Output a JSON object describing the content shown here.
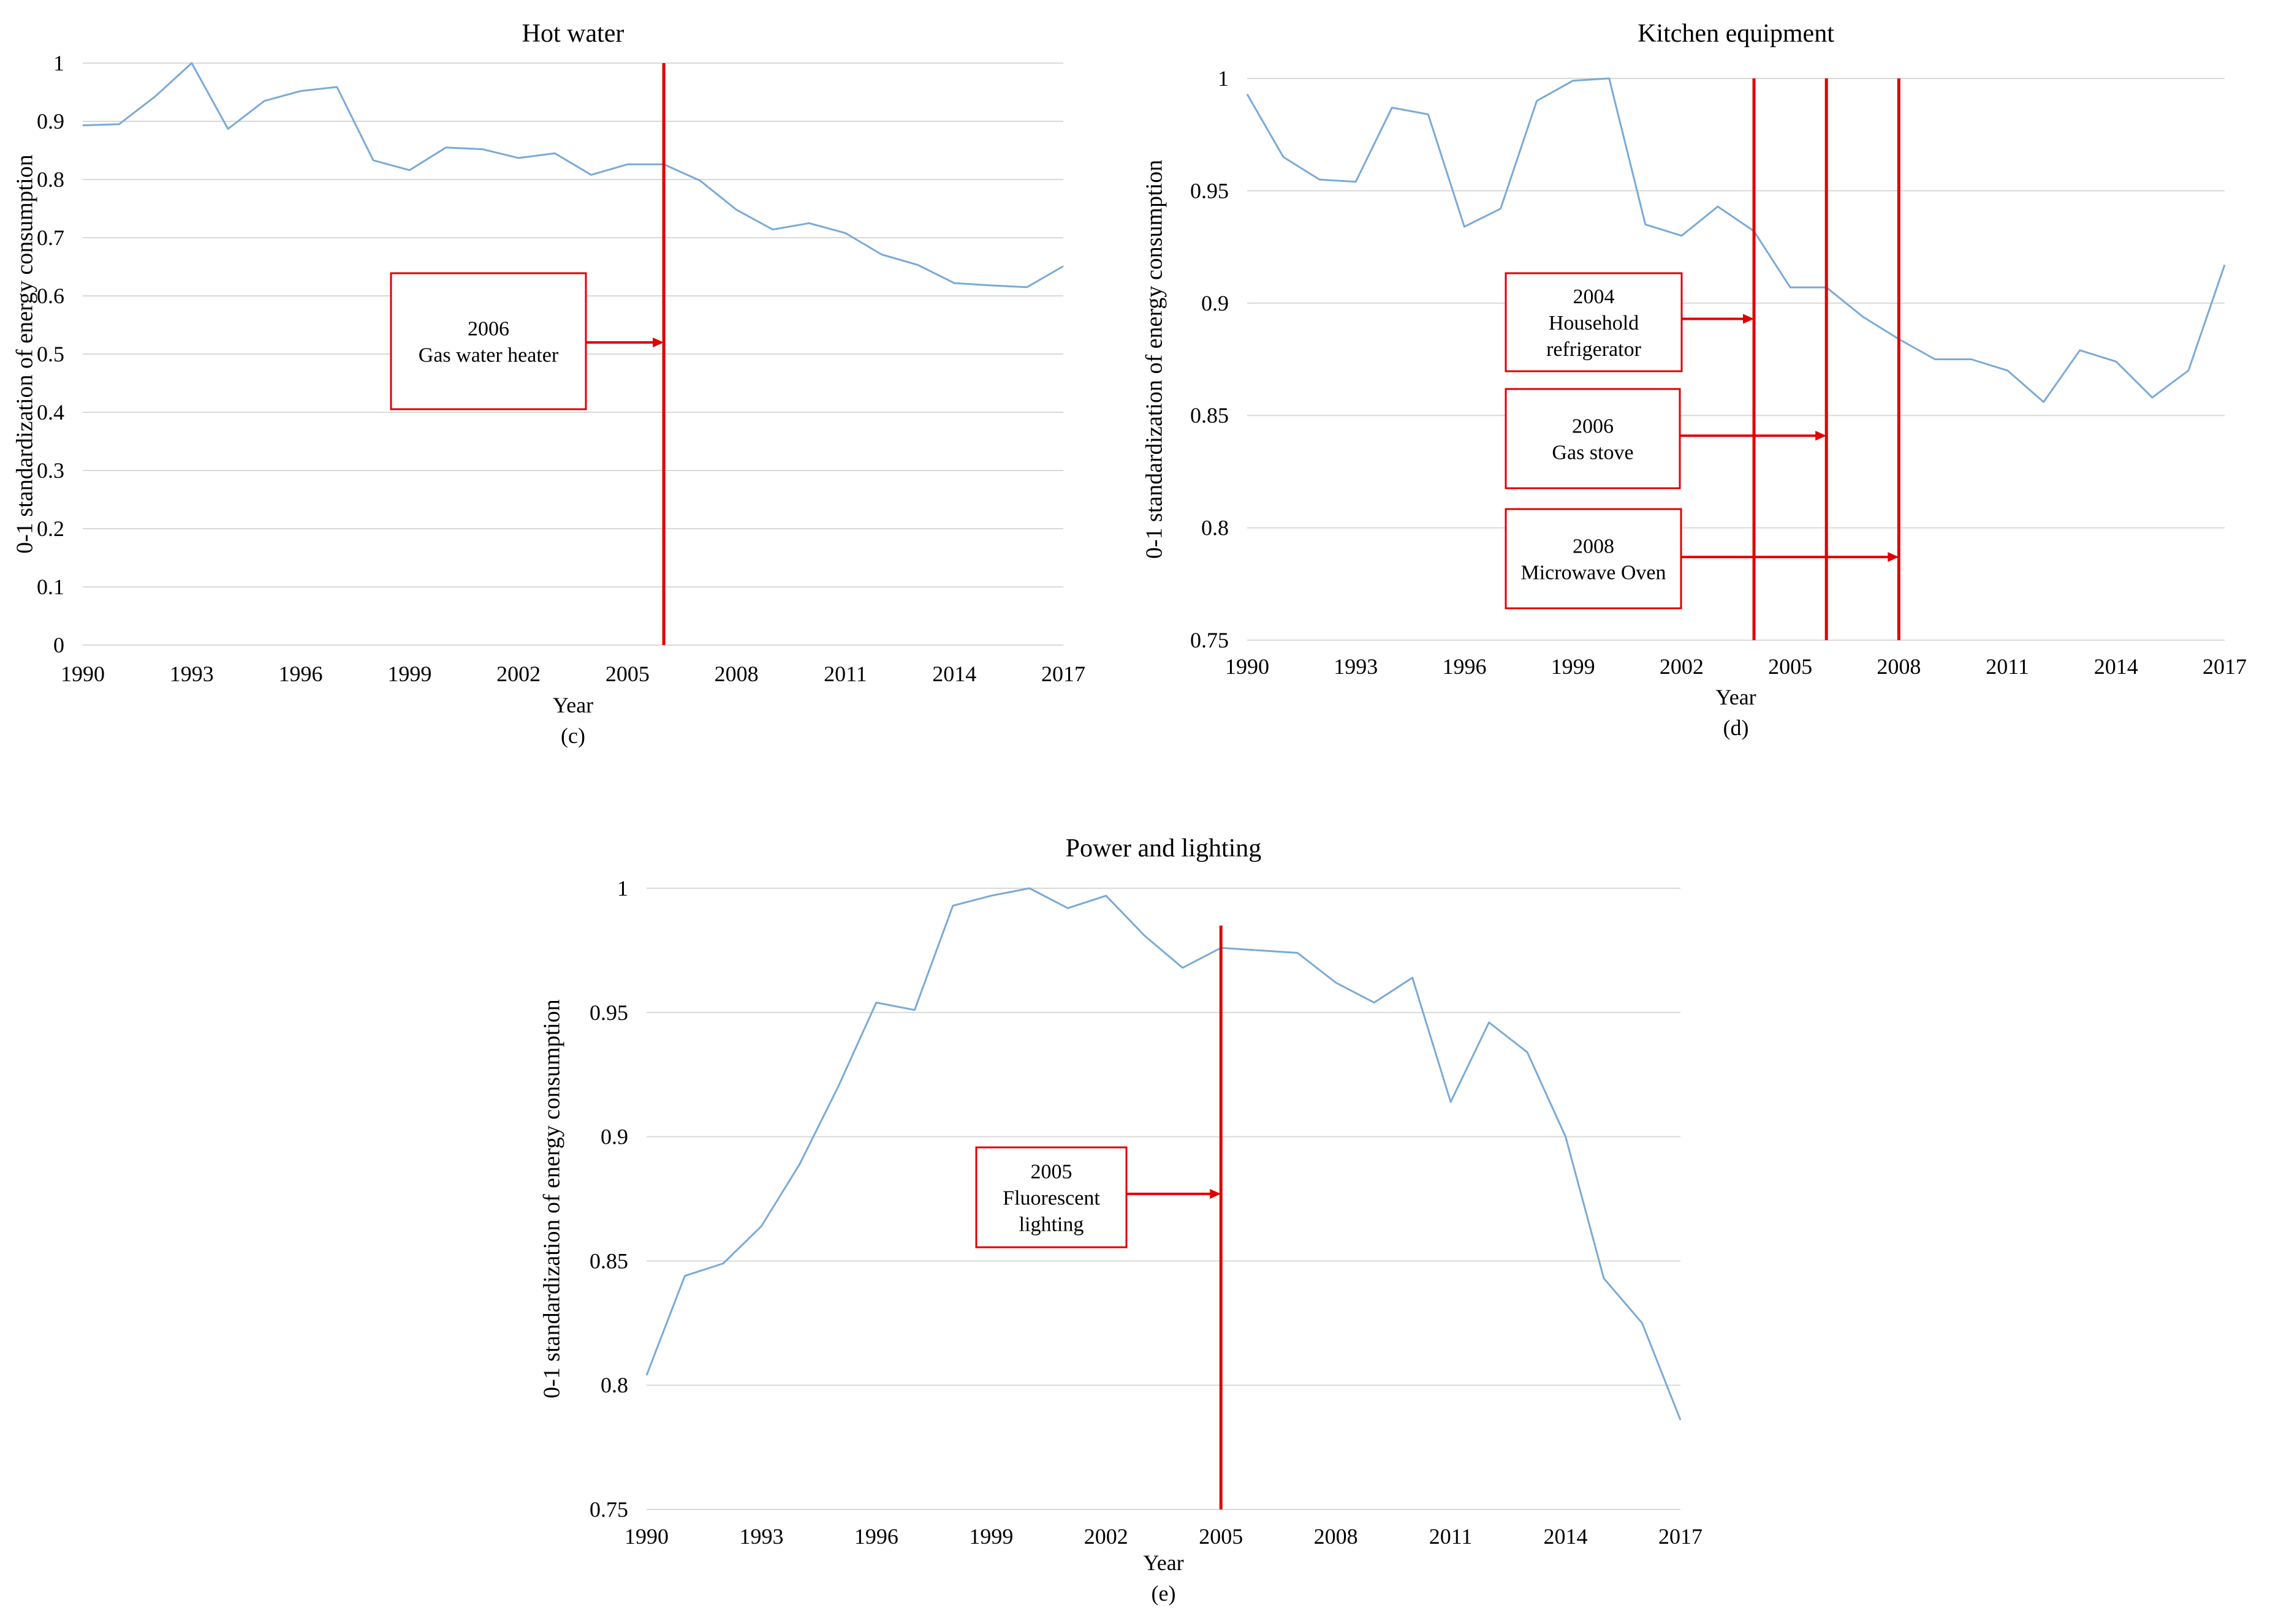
{
  "colors": {
    "line": "#7aaad6",
    "grid": "#d9d9d9",
    "annotation": "#e00000",
    "axis_text": "#000000"
  },
  "chart_data": [
    {
      "id": "hot-water",
      "type": "line",
      "title": "Hot water",
      "xlabel": "Year",
      "ylabel": "0-1 standardization of energy consumption",
      "caption": "(c)",
      "ylim": [
        0,
        1
      ],
      "yticks": [
        0,
        0.1,
        0.2,
        0.3,
        0.4,
        0.5,
        0.6,
        0.7,
        0.8,
        0.9,
        1
      ],
      "ytick_labels": [
        "0",
        "0.1",
        "0.2",
        "0.3",
        "0.4",
        "0.5",
        "0.6",
        "0.7",
        "0.8",
        "0.9",
        "1"
      ],
      "xticks": [
        1990,
        1993,
        1996,
        1999,
        2002,
        2005,
        2008,
        2011,
        2014,
        2017
      ],
      "xtick_labels": [
        "1990",
        "1993",
        "1996",
        "1999",
        "2002",
        "2005",
        "2008",
        "2011",
        "2014",
        "2017"
      ],
      "grid": true,
      "x": [
        1990,
        1991,
        1992,
        1993,
        1994,
        1995,
        1996,
        1997,
        1998,
        1999,
        2000,
        2001,
        2002,
        2003,
        2004,
        2005,
        2006,
        2007,
        2008,
        2009,
        2010,
        2011,
        2012,
        2013,
        2014,
        2015,
        2016,
        2017
      ],
      "values": [
        0.893,
        0.895,
        0.943,
        1.0,
        0.887,
        0.935,
        0.952,
        0.959,
        0.833,
        0.816,
        0.855,
        0.852,
        0.837,
        0.845,
        0.808,
        0.826,
        0.826,
        0.798,
        0.748,
        0.714,
        0.725,
        0.708,
        0.671,
        0.653,
        0.622,
        0.618,
        0.615,
        0.651
      ],
      "events": [
        {
          "year": 2006,
          "line_top": 1,
          "line_bottom": 0,
          "arrow_y": 0.52,
          "lines": [
            "2006",
            "Gas water heater"
          ]
        }
      ]
    },
    {
      "id": "kitchen-equipment",
      "type": "line",
      "title": "Kitchen  equipment",
      "xlabel": "Year",
      "ylabel": "0-1 standardization of energy consumption",
      "caption": "(d)",
      "ylim": [
        0.75,
        1
      ],
      "yticks": [
        0.75,
        0.8,
        0.85,
        0.9,
        0.95,
        1
      ],
      "ytick_labels": [
        "0.75",
        "0.8",
        "0.85",
        "0.9",
        "0.95",
        "1"
      ],
      "xticks": [
        1990,
        1993,
        1996,
        1999,
        2002,
        2005,
        2008,
        2011,
        2014,
        2017
      ],
      "xtick_labels": [
        "1990",
        "1993",
        "1996",
        "1999",
        "2002",
        "2005",
        "2008",
        "2011",
        "2014",
        "2017"
      ],
      "grid": true,
      "x": [
        1990,
        1991,
        1992,
        1993,
        1994,
        1995,
        1996,
        1997,
        1998,
        1999,
        2000,
        2001,
        2002,
        2003,
        2004,
        2005,
        2006,
        2007,
        2008,
        2009,
        2010,
        2011,
        2012,
        2013,
        2014,
        2015,
        2016,
        2017
      ],
      "values": [
        0.993,
        0.965,
        0.955,
        0.954,
        0.987,
        0.984,
        0.934,
        0.942,
        0.99,
        0.999,
        1.0,
        0.935,
        0.93,
        0.943,
        0.932,
        0.907,
        0.907,
        0.894,
        0.884,
        0.875,
        0.875,
        0.87,
        0.856,
        0.879,
        0.874,
        0.858,
        0.87,
        0.917
      ],
      "events": [
        {
          "year": 2004,
          "line_top": 1.0,
          "line_bottom": 0.75,
          "arrow_y": 0.893,
          "lines": [
            "2004",
            "Household",
            "refrigerator"
          ]
        },
        {
          "year": 2006,
          "line_top": 1.0,
          "line_bottom": 0.75,
          "arrow_y": 0.841,
          "lines": [
            "2006",
            "Gas stove"
          ]
        },
        {
          "year": 2008,
          "line_top": 1.0,
          "line_bottom": 0.75,
          "arrow_y": 0.787,
          "lines": [
            "2008",
            "Microwave Oven"
          ]
        }
      ]
    },
    {
      "id": "power-and-lighting",
      "type": "line",
      "title": "Power and lighting",
      "xlabel": "Year",
      "ylabel": "0-1 standardization of energy consumption",
      "caption": "(e)",
      "ylim": [
        0.75,
        1
      ],
      "yticks": [
        0.75,
        0.8,
        0.85,
        0.9,
        0.95,
        1
      ],
      "ytick_labels": [
        "0.75",
        "0.8",
        "0.85",
        "0.9",
        "0.95",
        "1"
      ],
      "xticks": [
        1990,
        1993,
        1996,
        1999,
        2002,
        2005,
        2008,
        2011,
        2014,
        2017
      ],
      "xtick_labels": [
        "1990",
        "1993",
        "1996",
        "1999",
        "2002",
        "2005",
        "2008",
        "2011",
        "2014",
        "2017"
      ],
      "grid": true,
      "x": [
        1990,
        1991,
        1992,
        1993,
        1994,
        1995,
        1996,
        1997,
        1998,
        1999,
        2000,
        2001,
        2002,
        2003,
        2004,
        2005,
        2006,
        2007,
        2008,
        2009,
        2010,
        2011,
        2012,
        2013,
        2014,
        2015,
        2016,
        2017
      ],
      "values": [
        0.804,
        0.844,
        0.849,
        0.864,
        0.889,
        0.92,
        0.954,
        0.951,
        0.993,
        0.997,
        1.0,
        0.992,
        0.997,
        0.981,
        0.968,
        0.976,
        0.975,
        0.974,
        0.962,
        0.954,
        0.964,
        0.914,
        0.946,
        0.934,
        0.9,
        0.843,
        0.825,
        0.786
      ],
      "events": [
        {
          "year": 2005,
          "line_top": 0.985,
          "line_bottom": 0.75,
          "arrow_y": 0.877,
          "lines": [
            "2005",
            "Fluorescent",
            "lighting"
          ]
        }
      ]
    }
  ]
}
